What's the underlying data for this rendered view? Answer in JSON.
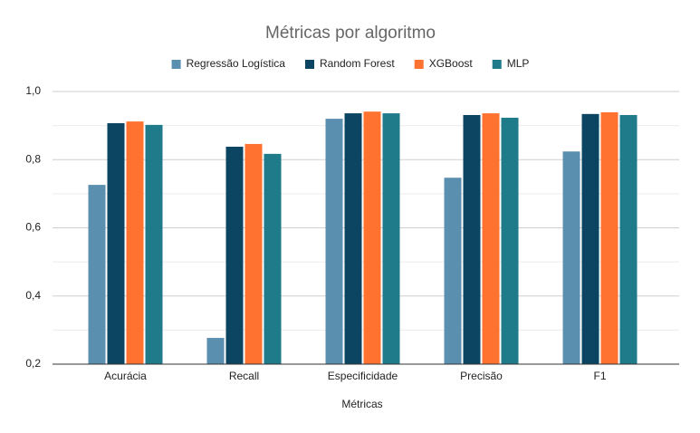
{
  "chart_data": {
    "type": "bar",
    "title": "Métricas por algoritmo",
    "x_label": "Métricas",
    "categories": [
      "Acurácia",
      "Recall",
      "Especificidade",
      "Precisão",
      "F1"
    ],
    "series": [
      {
        "name": "Regressão Logística",
        "color": "#5b8fb0",
        "values": [
          0.726,
          0.277,
          0.92,
          0.747,
          0.824
        ]
      },
      {
        "name": "Random Forest",
        "color": "#0b4562",
        "values": [
          0.907,
          0.838,
          0.936,
          0.931,
          0.934
        ]
      },
      {
        "name": "XGBoost",
        "color": "#ff7230",
        "values": [
          0.912,
          0.846,
          0.941,
          0.936,
          0.939
        ]
      },
      {
        "name": "MLP",
        "color": "#1f7a8a",
        "values": [
          0.902,
          0.817,
          0.936,
          0.923,
          0.931
        ]
      }
    ],
    "ylim": [
      0.2,
      1.0
    ],
    "yticks": [
      {
        "value": 0.2,
        "label": "0,2"
      },
      {
        "value": 0.4,
        "label": "0,4"
      },
      {
        "value": 0.6,
        "label": "0,6"
      },
      {
        "value": 0.8,
        "label": "0,8"
      },
      {
        "value": 1.0,
        "label": "1,0"
      }
    ],
    "minor_yticks": [
      0.3,
      0.5,
      0.7,
      0.9
    ],
    "grid": true,
    "legend": "top"
  }
}
